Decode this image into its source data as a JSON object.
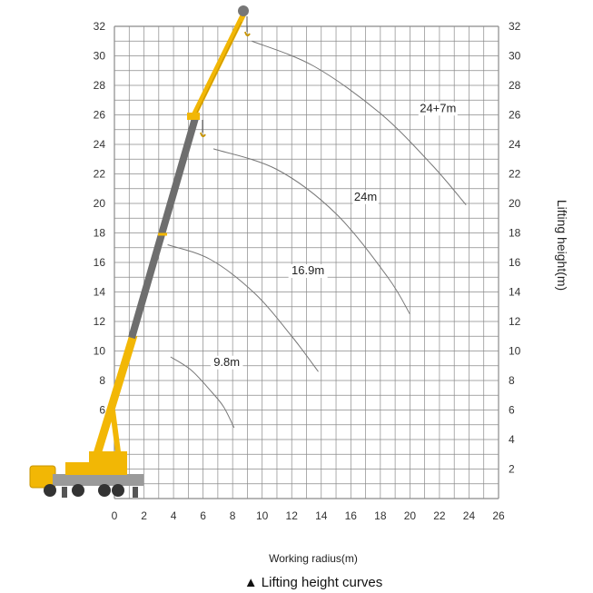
{
  "chart_data": {
    "type": "line",
    "title": "",
    "xlabel": "Working radius(m)",
    "ylabel": "Lifting height(m)",
    "caption": "▲ Lifting height curves",
    "xlim": [
      0,
      26
    ],
    "ylim": [
      0,
      32
    ],
    "x_ticks": [
      0,
      2,
      4,
      6,
      8,
      10,
      12,
      14,
      16,
      18,
      20,
      22,
      24,
      26
    ],
    "y_ticks": [
      2,
      4,
      6,
      8,
      10,
      12,
      14,
      16,
      18,
      20,
      22,
      24,
      26,
      28,
      30,
      32
    ],
    "grid": true,
    "series": [
      {
        "name": "9.8m",
        "x": [
          3.8,
          5.2,
          6.6,
          7.4,
          8.1
        ],
        "y": [
          9.6,
          8.7,
          7.2,
          6.2,
          4.8
        ]
      },
      {
        "name": "16.9m",
        "x": [
          3.6,
          6.5,
          9.5,
          12.0,
          13.8
        ],
        "y": [
          17.2,
          16.2,
          13.9,
          11.0,
          8.6
        ]
      },
      {
        "name": "24m",
        "x": [
          6.7,
          11.0,
          15.0,
          18.5,
          20.0
        ],
        "y": [
          23.7,
          22.3,
          19.3,
          15.0,
          12.5
        ]
      },
      {
        "name": "24+7m",
        "x": [
          9.3,
          13.5,
          18.0,
          21.5,
          23.8
        ],
        "y": [
          31.0,
          29.3,
          26.1,
          22.6,
          19.9
        ]
      }
    ],
    "colors": {
      "grid": "#8a8a8a",
      "curve": "#777777",
      "crane_yellow": "#f2b705",
      "boom_grey": "#6e6e6e"
    }
  }
}
